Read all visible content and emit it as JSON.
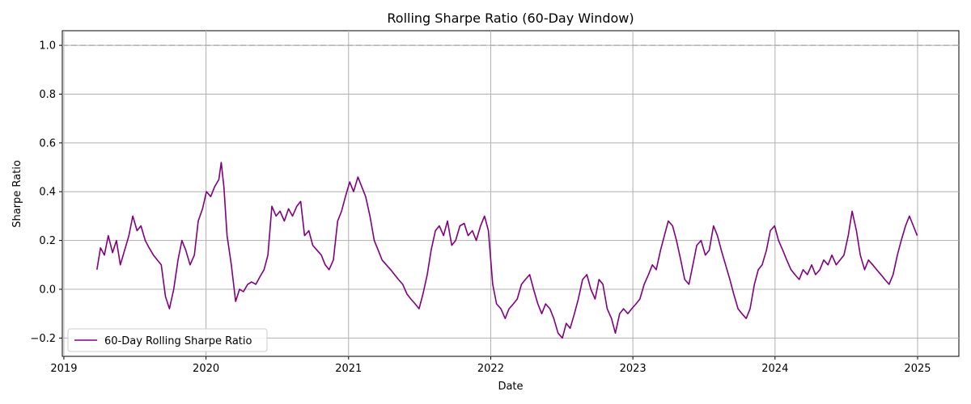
{
  "chart_data": {
    "type": "line",
    "title": "Rolling Sharpe Ratio (60-Day Window)",
    "xlabel": "Date",
    "ylabel": "Sharpe Ratio",
    "x_ticks": [
      "2019",
      "2020",
      "2021",
      "2022",
      "2023",
      "2024",
      "2025"
    ],
    "y_ticks": [
      "−0.2",
      "0.0",
      "0.2",
      "0.4",
      "0.6",
      "0.8",
      "1.0"
    ],
    "xlim": [
      "2018-12-28",
      "2025-04-17"
    ],
    "ylim": [
      -0.275,
      1.06
    ],
    "grid": true,
    "legend_position": "lower-left",
    "reference_line": {
      "y": 1.0,
      "style": "dashed",
      "color": "#b0b0b0"
    },
    "series": [
      {
        "name": "60-Day Rolling Sharpe Ratio",
        "color": "#800080",
        "points": [
          [
            "2019-03-27",
            0.08
          ],
          [
            "2019-04-05",
            0.17
          ],
          [
            "2019-04-15",
            0.14
          ],
          [
            "2019-04-25",
            0.22
          ],
          [
            "2019-05-06",
            0.15
          ],
          [
            "2019-05-16",
            0.2
          ],
          [
            "2019-05-26",
            0.1
          ],
          [
            "2019-06-06",
            0.16
          ],
          [
            "2019-06-17",
            0.22
          ],
          [
            "2019-06-27",
            0.3
          ],
          [
            "2019-07-08",
            0.24
          ],
          [
            "2019-07-18",
            0.26
          ],
          [
            "2019-07-29",
            0.2
          ],
          [
            "2019-08-08",
            0.17
          ],
          [
            "2019-08-19",
            0.14
          ],
          [
            "2019-08-29",
            0.12
          ],
          [
            "2019-09-08",
            0.1
          ],
          [
            "2019-09-19",
            -0.03
          ],
          [
            "2019-09-29",
            -0.08
          ],
          [
            "2019-10-10",
            0.0
          ],
          [
            "2019-10-21",
            0.12
          ],
          [
            "2019-10-31",
            0.2
          ],
          [
            "2019-11-10",
            0.16
          ],
          [
            "2019-11-21",
            0.1
          ],
          [
            "2019-12-02",
            0.14
          ],
          [
            "2019-12-12",
            0.28
          ],
          [
            "2019-12-23",
            0.33
          ],
          [
            "2020-01-02",
            0.4
          ],
          [
            "2020-01-13",
            0.38
          ],
          [
            "2020-01-23",
            0.42
          ],
          [
            "2020-02-03",
            0.45
          ],
          [
            "2020-02-09",
            0.52
          ],
          [
            "2020-02-16",
            0.42
          ],
          [
            "2020-02-24",
            0.22
          ],
          [
            "2020-03-06",
            0.1
          ],
          [
            "2020-03-17",
            -0.05
          ],
          [
            "2020-03-27",
            0.0
          ],
          [
            "2020-04-06",
            -0.01
          ],
          [
            "2020-04-17",
            0.02
          ],
          [
            "2020-04-27",
            0.03
          ],
          [
            "2020-05-08",
            0.02
          ],
          [
            "2020-05-18",
            0.05
          ],
          [
            "2020-05-29",
            0.08
          ],
          [
            "2020-06-08",
            0.14
          ],
          [
            "2020-06-18",
            0.34
          ],
          [
            "2020-06-29",
            0.3
          ],
          [
            "2020-07-09",
            0.32
          ],
          [
            "2020-07-20",
            0.28
          ],
          [
            "2020-07-31",
            0.33
          ],
          [
            "2020-08-10",
            0.3
          ],
          [
            "2020-08-21",
            0.34
          ],
          [
            "2020-08-31",
            0.36
          ],
          [
            "2020-09-10",
            0.22
          ],
          [
            "2020-09-21",
            0.24
          ],
          [
            "2020-10-01",
            0.18
          ],
          [
            "2020-10-12",
            0.16
          ],
          [
            "2020-10-23",
            0.14
          ],
          [
            "2020-11-02",
            0.1
          ],
          [
            "2020-11-12",
            0.08
          ],
          [
            "2020-11-23",
            0.12
          ],
          [
            "2020-12-04",
            0.28
          ],
          [
            "2020-12-14",
            0.32
          ],
          [
            "2020-12-24",
            0.38
          ],
          [
            "2021-01-04",
            0.44
          ],
          [
            "2021-01-14",
            0.4
          ],
          [
            "2021-01-25",
            0.46
          ],
          [
            "2021-02-04",
            0.42
          ],
          [
            "2021-02-14",
            0.38
          ],
          [
            "2021-02-25",
            0.3
          ],
          [
            "2021-03-08",
            0.2
          ],
          [
            "2021-03-18",
            0.16
          ],
          [
            "2021-03-28",
            0.12
          ],
          [
            "2021-04-08",
            0.1
          ],
          [
            "2021-04-19",
            0.08
          ],
          [
            "2021-04-29",
            0.06
          ],
          [
            "2021-05-09",
            0.04
          ],
          [
            "2021-05-20",
            0.02
          ],
          [
            "2021-05-31",
            -0.02
          ],
          [
            "2021-06-10",
            -0.04
          ],
          [
            "2021-06-21",
            -0.06
          ],
          [
            "2021-07-01",
            -0.08
          ],
          [
            "2021-07-11",
            -0.02
          ],
          [
            "2021-07-22",
            0.06
          ],
          [
            "2021-08-01",
            0.16
          ],
          [
            "2021-08-12",
            0.24
          ],
          [
            "2021-08-22",
            0.26
          ],
          [
            "2021-09-02",
            0.22
          ],
          [
            "2021-09-12",
            0.28
          ],
          [
            "2021-09-23",
            0.18
          ],
          [
            "2021-10-03",
            0.2
          ],
          [
            "2021-10-14",
            0.26
          ],
          [
            "2021-10-25",
            0.27
          ],
          [
            "2021-11-04",
            0.22
          ],
          [
            "2021-11-15",
            0.24
          ],
          [
            "2021-11-25",
            0.2
          ],
          [
            "2021-12-06",
            0.26
          ],
          [
            "2021-12-16",
            0.3
          ],
          [
            "2021-12-26",
            0.24
          ],
          [
            "2022-01-06",
            0.02
          ],
          [
            "2022-01-16",
            -0.06
          ],
          [
            "2022-01-27",
            -0.08
          ],
          [
            "2022-02-07",
            -0.12
          ],
          [
            "2022-02-17",
            -0.08
          ],
          [
            "2022-02-28",
            -0.06
          ],
          [
            "2022-03-10",
            -0.04
          ],
          [
            "2022-03-21",
            0.02
          ],
          [
            "2022-03-31",
            0.04
          ],
          [
            "2022-04-11",
            0.06
          ],
          [
            "2022-04-21",
            0.0
          ],
          [
            "2022-05-02",
            -0.06
          ],
          [
            "2022-05-12",
            -0.1
          ],
          [
            "2022-05-22",
            -0.06
          ],
          [
            "2022-06-02",
            -0.08
          ],
          [
            "2022-06-12",
            -0.12
          ],
          [
            "2022-06-23",
            -0.18
          ],
          [
            "2022-07-04",
            -0.2
          ],
          [
            "2022-07-14",
            -0.14
          ],
          [
            "2022-07-24",
            -0.16
          ],
          [
            "2022-08-04",
            -0.1
          ],
          [
            "2022-08-14",
            -0.04
          ],
          [
            "2022-08-25",
            0.04
          ],
          [
            "2022-09-05",
            0.06
          ],
          [
            "2022-09-15",
            0.0
          ],
          [
            "2022-09-26",
            -0.04
          ],
          [
            "2022-10-06",
            0.04
          ],
          [
            "2022-10-16",
            0.02
          ],
          [
            "2022-10-27",
            -0.08
          ],
          [
            "2022-11-07",
            -0.12
          ],
          [
            "2022-11-17",
            -0.18
          ],
          [
            "2022-11-28",
            -0.1
          ],
          [
            "2022-12-08",
            -0.08
          ],
          [
            "2022-12-19",
            -0.1
          ],
          [
            "2022-12-29",
            -0.08
          ],
          [
            "2023-01-09",
            -0.06
          ],
          [
            "2023-01-19",
            -0.04
          ],
          [
            "2023-01-30",
            0.02
          ],
          [
            "2023-02-10",
            0.06
          ],
          [
            "2023-02-20",
            0.1
          ],
          [
            "2023-03-02",
            0.08
          ],
          [
            "2023-03-13",
            0.16
          ],
          [
            "2023-03-23",
            0.22
          ],
          [
            "2023-04-02",
            0.28
          ],
          [
            "2023-04-13",
            0.26
          ],
          [
            "2023-04-23",
            0.2
          ],
          [
            "2023-05-04",
            0.12
          ],
          [
            "2023-05-14",
            0.04
          ],
          [
            "2023-05-25",
            0.02
          ],
          [
            "2023-06-04",
            0.1
          ],
          [
            "2023-06-14",
            0.18
          ],
          [
            "2023-06-25",
            0.2
          ],
          [
            "2023-07-06",
            0.14
          ],
          [
            "2023-07-16",
            0.16
          ],
          [
            "2023-07-27",
            0.26
          ],
          [
            "2023-08-06",
            0.22
          ],
          [
            "2023-08-16",
            0.16
          ],
          [
            "2023-08-27",
            0.1
          ],
          [
            "2023-09-07",
            0.04
          ],
          [
            "2023-09-17",
            -0.02
          ],
          [
            "2023-09-28",
            -0.08
          ],
          [
            "2023-10-08",
            -0.1
          ],
          [
            "2023-10-19",
            -0.12
          ],
          [
            "2023-10-29",
            -0.08
          ],
          [
            "2023-11-09",
            0.02
          ],
          [
            "2023-11-19",
            0.08
          ],
          [
            "2023-11-29",
            0.1
          ],
          [
            "2023-12-10",
            0.16
          ],
          [
            "2023-12-20",
            0.24
          ],
          [
            "2023-12-31",
            0.26
          ],
          [
            "2024-01-10",
            0.2
          ],
          [
            "2024-01-21",
            0.16
          ],
          [
            "2024-01-31",
            0.12
          ],
          [
            "2024-02-11",
            0.08
          ],
          [
            "2024-02-21",
            0.06
          ],
          [
            "2024-03-03",
            0.04
          ],
          [
            "2024-03-13",
            0.08
          ],
          [
            "2024-03-24",
            0.06
          ],
          [
            "2024-04-04",
            0.1
          ],
          [
            "2024-04-14",
            0.06
          ],
          [
            "2024-04-25",
            0.08
          ],
          [
            "2024-05-05",
            0.12
          ],
          [
            "2024-05-16",
            0.1
          ],
          [
            "2024-05-26",
            0.14
          ],
          [
            "2024-06-06",
            0.1
          ],
          [
            "2024-06-16",
            0.12
          ],
          [
            "2024-06-26",
            0.14
          ],
          [
            "2024-07-07",
            0.22
          ],
          [
            "2024-07-17",
            0.32
          ],
          [
            "2024-07-28",
            0.24
          ],
          [
            "2024-08-07",
            0.14
          ],
          [
            "2024-08-18",
            0.08
          ],
          [
            "2024-08-28",
            0.12
          ],
          [
            "2024-09-08",
            0.1
          ],
          [
            "2024-09-18",
            0.08
          ],
          [
            "2024-09-29",
            0.06
          ],
          [
            "2024-10-09",
            0.04
          ],
          [
            "2024-10-20",
            0.02
          ],
          [
            "2024-10-30",
            0.06
          ],
          [
            "2024-11-10",
            0.14
          ],
          [
            "2024-11-20",
            0.2
          ],
          [
            "2024-12-01",
            0.26
          ],
          [
            "2024-12-11",
            0.3
          ],
          [
            "2024-12-21",
            0.26
          ],
          [
            "2024-12-31",
            0.22
          ]
        ]
      }
    ]
  }
}
